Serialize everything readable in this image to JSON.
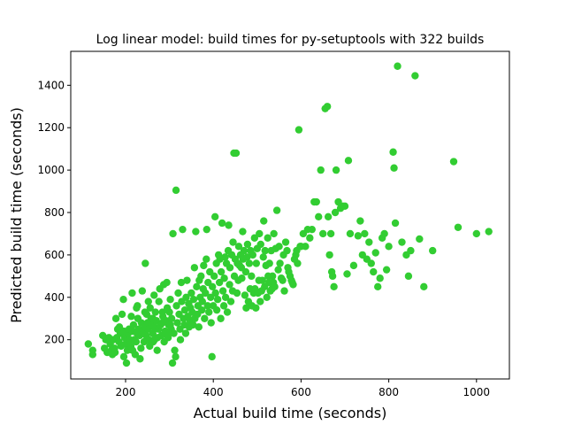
{
  "chart_data": {
    "type": "scatter",
    "title": "Log linear model: build times for py-setuptools with 322 builds",
    "xlabel": "Actual build time (seconds)",
    "ylabel": "Predicted build time (seconds)",
    "xlim": [
      75,
      1075
    ],
    "ylim": [
      15,
      1560
    ],
    "xticks": [
      200,
      400,
      600,
      800,
      1000
    ],
    "yticks": [
      200,
      400,
      600,
      800,
      1000,
      1200,
      1400
    ],
    "grid": false,
    "color": "#32cd32",
    "points": [
      [
        115,
        180
      ],
      [
        125,
        150
      ],
      [
        125,
        130
      ],
      [
        148,
        220
      ],
      [
        152,
        160
      ],
      [
        155,
        200
      ],
      [
        158,
        140
      ],
      [
        162,
        210
      ],
      [
        165,
        180
      ],
      [
        168,
        150
      ],
      [
        170,
        130
      ],
      [
        172,
        200
      ],
      [
        175,
        160
      ],
      [
        178,
        300
      ],
      [
        180,
        210
      ],
      [
        182,
        250
      ],
      [
        185,
        190
      ],
      [
        188,
        230
      ],
      [
        190,
        170
      ],
      [
        192,
        320
      ],
      [
        195,
        390
      ],
      [
        196,
        240
      ],
      [
        198,
        210
      ],
      [
        200,
        180
      ],
      [
        202,
        90
      ],
      [
        204,
        150
      ],
      [
        206,
        230
      ],
      [
        208,
        250
      ],
      [
        210,
        200
      ],
      [
        212,
        170
      ],
      [
        213,
        310
      ],
      [
        215,
        420
      ],
      [
        216,
        240
      ],
      [
        218,
        270
      ],
      [
        220,
        200
      ],
      [
        222,
        130
      ],
      [
        224,
        190
      ],
      [
        225,
        350
      ],
      [
        227,
        360
      ],
      [
        228,
        300
      ],
      [
        230,
        250
      ],
      [
        232,
        220
      ],
      [
        233,
        110
      ],
      [
        235,
        160
      ],
      [
        236,
        280
      ],
      [
        238,
        430
      ],
      [
        240,
        240
      ],
      [
        242,
        190
      ],
      [
        244,
        260
      ],
      [
        245,
        560
      ],
      [
        247,
        220
      ],
      [
        248,
        320
      ],
      [
        250,
        280
      ],
      [
        252,
        250
      ],
      [
        253,
        200
      ],
      [
        255,
        170
      ],
      [
        256,
        350
      ],
      [
        258,
        300
      ],
      [
        260,
        270
      ],
      [
        262,
        230
      ],
      [
        263,
        190
      ],
      [
        265,
        410
      ],
      [
        266,
        260
      ],
      [
        268,
        330
      ],
      [
        270,
        290
      ],
      [
        272,
        150
      ],
      [
        273,
        210
      ],
      [
        275,
        250
      ],
      [
        276,
        380
      ],
      [
        278,
        440
      ],
      [
        280,
        270
      ],
      [
        282,
        220
      ],
      [
        284,
        330
      ],
      [
        285,
        310
      ],
      [
        287,
        460
      ],
      [
        288,
        190
      ],
      [
        290,
        240
      ],
      [
        292,
        290
      ],
      [
        294,
        470
      ],
      [
        295,
        350
      ],
      [
        297,
        210
      ],
      [
        298,
        270
      ],
      [
        300,
        330
      ],
      [
        302,
        390
      ],
      [
        304,
        250
      ],
      [
        305,
        300
      ],
      [
        307,
        90
      ],
      [
        308,
        700
      ],
      [
        310,
        230
      ],
      [
        312,
        150
      ],
      [
        314,
        120
      ],
      [
        315,
        905
      ],
      [
        316,
        360
      ],
      [
        318,
        280
      ],
      [
        320,
        420
      ],
      [
        322,
        320
      ],
      [
        324,
        250
      ],
      [
        325,
        200
      ],
      [
        327,
        470
      ],
      [
        328,
        380
      ],
      [
        330,
        720
      ],
      [
        332,
        300
      ],
      [
        334,
        270
      ],
      [
        335,
        340
      ],
      [
        337,
        230
      ],
      [
        338,
        400
      ],
      [
        340,
        480
      ],
      [
        342,
        310
      ],
      [
        344,
        370
      ],
      [
        345,
        260
      ],
      [
        347,
        290
      ],
      [
        348,
        350
      ],
      [
        350,
        420
      ],
      [
        352,
        330
      ],
      [
        354,
        270
      ],
      [
        355,
        390
      ],
      [
        357,
        540
      ],
      [
        358,
        300
      ],
      [
        360,
        710
      ],
      [
        362,
        450
      ],
      [
        364,
        320
      ],
      [
        365,
        360
      ],
      [
        367,
        260
      ],
      [
        368,
        480
      ],
      [
        370,
        400
      ],
      [
        372,
        500
      ],
      [
        374,
        340
      ],
      [
        375,
        380
      ],
      [
        377,
        440
      ],
      [
        378,
        550
      ],
      [
        380,
        300
      ],
      [
        382,
        420
      ],
      [
        384,
        580
      ],
      [
        385,
        720
      ],
      [
        387,
        360
      ],
      [
        388,
        470
      ],
      [
        390,
        330
      ],
      [
        392,
        520
      ],
      [
        394,
        400
      ],
      [
        395,
        280
      ],
      [
        397,
        120
      ],
      [
        398,
        450
      ],
      [
        400,
        360
      ],
      [
        402,
        500
      ],
      [
        404,
        780
      ],
      [
        405,
        420
      ],
      [
        407,
        560
      ],
      [
        408,
        340
      ],
      [
        410,
        390
      ],
      [
        412,
        600
      ],
      [
        414,
        470
      ],
      [
        415,
        580
      ],
      [
        417,
        300
      ],
      [
        418,
        520
      ],
      [
        420,
        750
      ],
      [
        422,
        430
      ],
      [
        424,
        360
      ],
      [
        425,
        490
      ],
      [
        427,
        590
      ],
      [
        428,
        400
      ],
      [
        430,
        560
      ],
      [
        432,
        330
      ],
      [
        434,
        620
      ],
      [
        435,
        740
      ],
      [
        437,
        460
      ],
      [
        438,
        540
      ],
      [
        440,
        380
      ],
      [
        442,
        600
      ],
      [
        444,
        430
      ],
      [
        445,
        660
      ],
      [
        447,
        1080
      ],
      [
        448,
        500
      ],
      [
        450,
        580
      ],
      [
        452,
        1080
      ],
      [
        454,
        420
      ],
      [
        455,
        560
      ],
      [
        457,
        480
      ],
      [
        458,
        640
      ],
      [
        460,
        550
      ],
      [
        462,
        600
      ],
      [
        464,
        540
      ],
      [
        465,
        490
      ],
      [
        467,
        710
      ],
      [
        468,
        580
      ],
      [
        470,
        620
      ],
      [
        472,
        410
      ],
      [
        474,
        520
      ],
      [
        475,
        350
      ],
      [
        477,
        590
      ],
      [
        478,
        650
      ],
      [
        480,
        380
      ],
      [
        482,
        560
      ],
      [
        484,
        440
      ],
      [
        485,
        620
      ],
      [
        487,
        500
      ],
      [
        488,
        360
      ],
      [
        490,
        600
      ],
      [
        492,
        420
      ],
      [
        494,
        680
      ],
      [
        495,
        440
      ],
      [
        497,
        350
      ],
      [
        498,
        560
      ],
      [
        500,
        630
      ],
      [
        502,
        420
      ],
      [
        504,
        480
      ],
      [
        505,
        700
      ],
      [
        507,
        380
      ],
      [
        508,
        650
      ],
      [
        510,
        430
      ],
      [
        512,
        480
      ],
      [
        514,
        590
      ],
      [
        515,
        760
      ],
      [
        517,
        450
      ],
      [
        518,
        620
      ],
      [
        520,
        550
      ],
      [
        522,
        400
      ],
      [
        524,
        680
      ],
      [
        525,
        500
      ],
      [
        527,
        470
      ],
      [
        528,
        560
      ],
      [
        530,
        430
      ],
      [
        532,
        620
      ],
      [
        534,
        440
      ],
      [
        535,
        500
      ],
      [
        537,
        470
      ],
      [
        538,
        700
      ],
      [
        540,
        450
      ],
      [
        542,
        630
      ],
      [
        545,
        810
      ],
      [
        548,
        530
      ],
      [
        550,
        640
      ],
      [
        552,
        560
      ],
      [
        555,
        490
      ],
      [
        558,
        480
      ],
      [
        560,
        600
      ],
      [
        562,
        430
      ],
      [
        565,
        660
      ],
      [
        568,
        620
      ],
      [
        570,
        540
      ],
      [
        572,
        520
      ],
      [
        575,
        500
      ],
      [
        578,
        480
      ],
      [
        580,
        470
      ],
      [
        582,
        460
      ],
      [
        585,
        580
      ],
      [
        588,
        600
      ],
      [
        590,
        620
      ],
      [
        592,
        560
      ],
      [
        595,
        1190
      ],
      [
        598,
        640
      ],
      [
        600,
        640
      ],
      [
        605,
        700
      ],
      [
        610,
        640
      ],
      [
        615,
        720
      ],
      [
        620,
        680
      ],
      [
        625,
        720
      ],
      [
        630,
        850
      ],
      [
        635,
        850
      ],
      [
        640,
        780
      ],
      [
        645,
        1000
      ],
      [
        650,
        700
      ],
      [
        655,
        1290
      ],
      [
        660,
        1300
      ],
      [
        662,
        780
      ],
      [
        665,
        600
      ],
      [
        668,
        700
      ],
      [
        670,
        520
      ],
      [
        672,
        500
      ],
      [
        675,
        450
      ],
      [
        678,
        800
      ],
      [
        680,
        1000
      ],
      [
        685,
        850
      ],
      [
        690,
        820
      ],
      [
        695,
        830
      ],
      [
        700,
        830
      ],
      [
        705,
        510
      ],
      [
        708,
        1045
      ],
      [
        712,
        700
      ],
      [
        720,
        550
      ],
      [
        730,
        690
      ],
      [
        735,
        760
      ],
      [
        740,
        600
      ],
      [
        745,
        700
      ],
      [
        750,
        580
      ],
      [
        755,
        660
      ],
      [
        760,
        560
      ],
      [
        765,
        520
      ],
      [
        770,
        610
      ],
      [
        775,
        450
      ],
      [
        780,
        490
      ],
      [
        785,
        680
      ],
      [
        790,
        700
      ],
      [
        795,
        530
      ],
      [
        800,
        640
      ],
      [
        810,
        1085
      ],
      [
        812,
        1010
      ],
      [
        815,
        750
      ],
      [
        820,
        1490
      ],
      [
        830,
        660
      ],
      [
        840,
        600
      ],
      [
        845,
        500
      ],
      [
        850,
        620
      ],
      [
        860,
        1445
      ],
      [
        870,
        675
      ],
      [
        880,
        450
      ],
      [
        900,
        620
      ],
      [
        948,
        1040
      ],
      [
        958,
        730
      ],
      [
        1000,
        700
      ],
      [
        1028,
        710
      ],
      [
        176,
        140
      ],
      [
        186,
        260
      ],
      [
        196,
        120
      ],
      [
        216,
        150
      ],
      [
        226,
        230
      ],
      [
        244,
        330
      ],
      [
        252,
        380
      ],
      [
        262,
        300
      ],
      [
        266,
        200
      ],
      [
        284,
        280
      ],
      [
        296,
        230
      ],
      [
        302,
        270
      ]
    ]
  }
}
